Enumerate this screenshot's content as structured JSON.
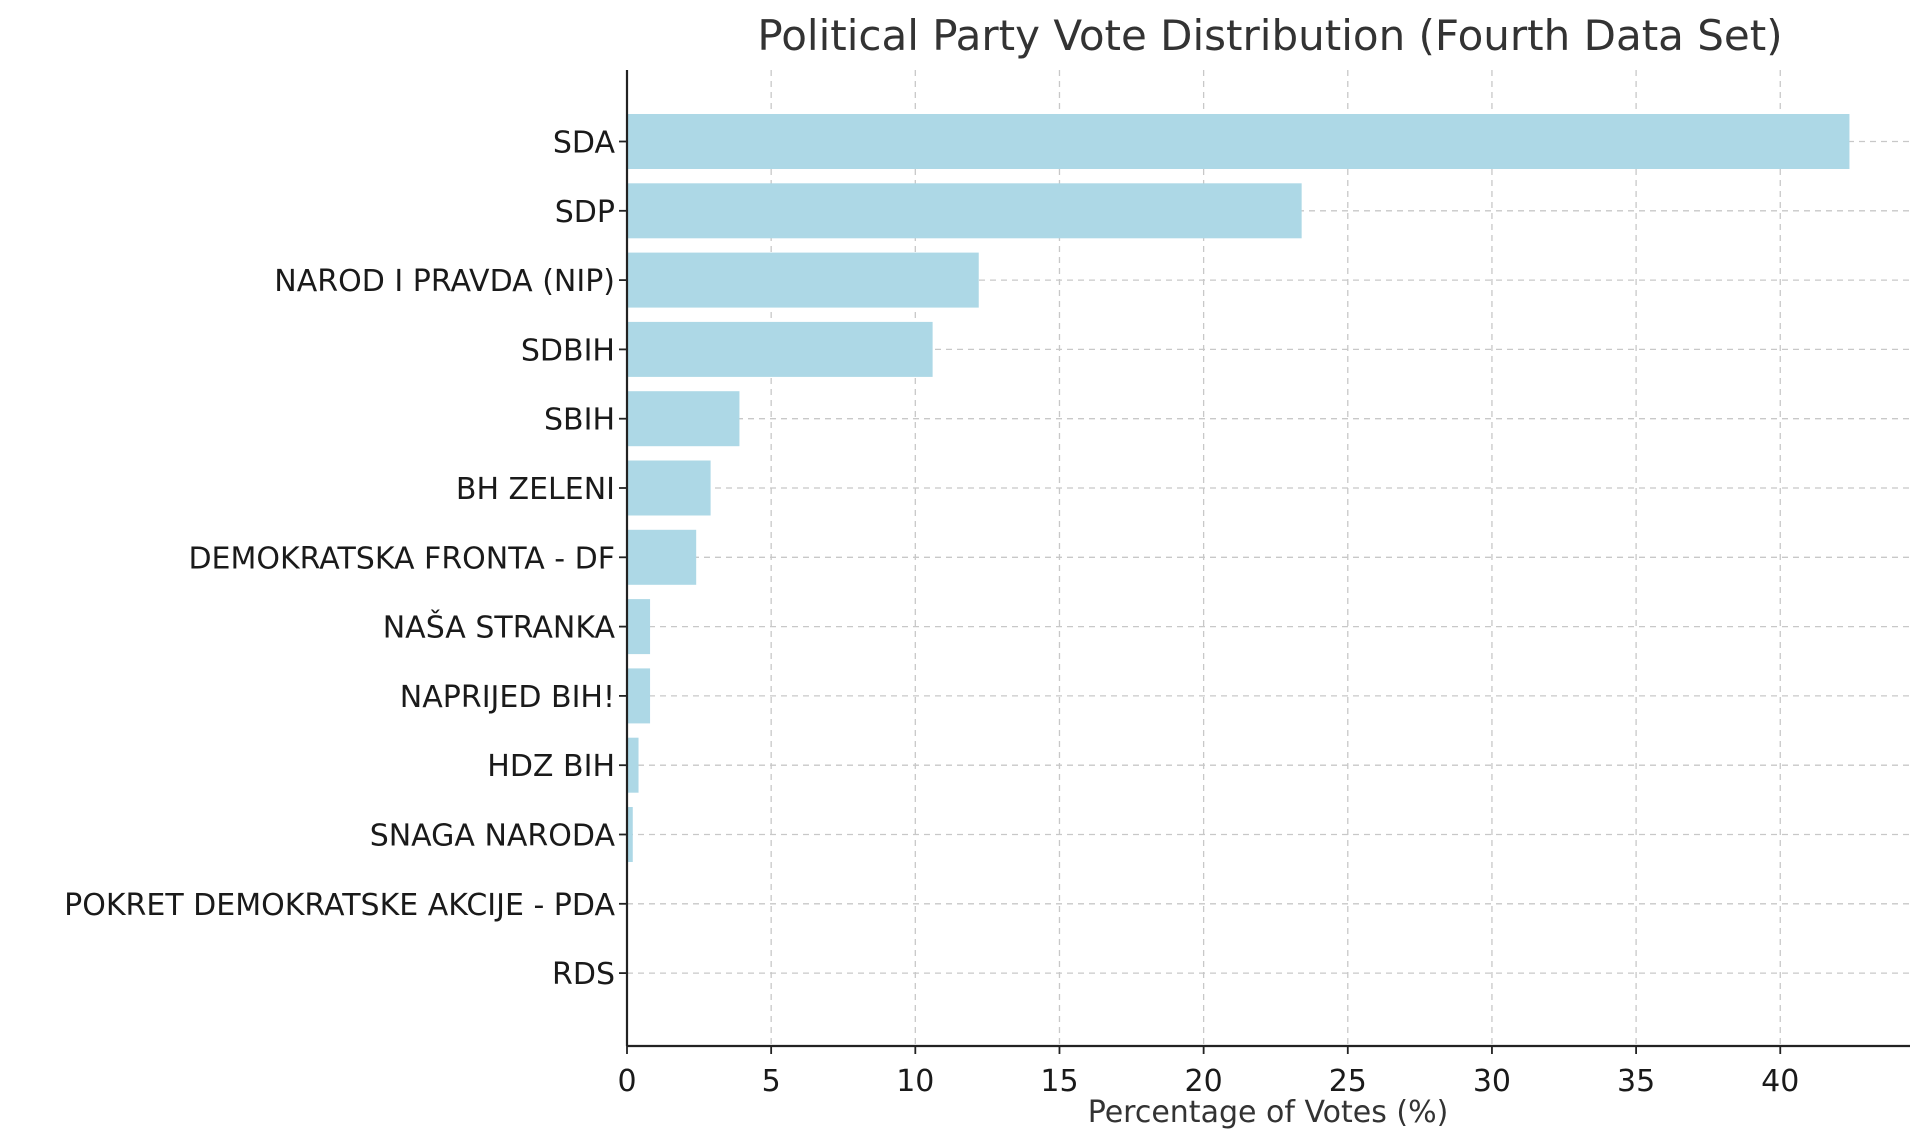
{
  "chart_data": {
    "type": "bar",
    "orientation": "horizontal",
    "title": "Political Party Vote Distribution (Fourth Data Set)",
    "xlabel": "Percentage of Votes (%)",
    "ylabel": "",
    "categories": [
      "SDA",
      "SDP",
      "NAROD I PRAVDA (NIP)",
      "SDBIH",
      "SBIH",
      "BH ZELENI",
      "DEMOKRATSKA FRONTA - DF",
      "NAŠA STRANKA",
      "NAPRIJED BIH!",
      "HDZ BIH",
      "SNAGA NARODA",
      "POKRET DEMOKRATSKE AKCIJE - PDA",
      "RDS"
    ],
    "values": [
      42.4,
      23.4,
      12.2,
      10.6,
      3.9,
      2.9,
      2.4,
      0.8,
      0.8,
      0.4,
      0.2,
      0.0,
      0.0
    ],
    "xlim": [
      0,
      44.5
    ],
    "xticks": [
      0,
      5,
      10,
      15,
      20,
      25,
      30,
      35,
      40
    ],
    "grid": true,
    "legend": "none",
    "colors": {
      "bar": "#add8e6"
    }
  }
}
